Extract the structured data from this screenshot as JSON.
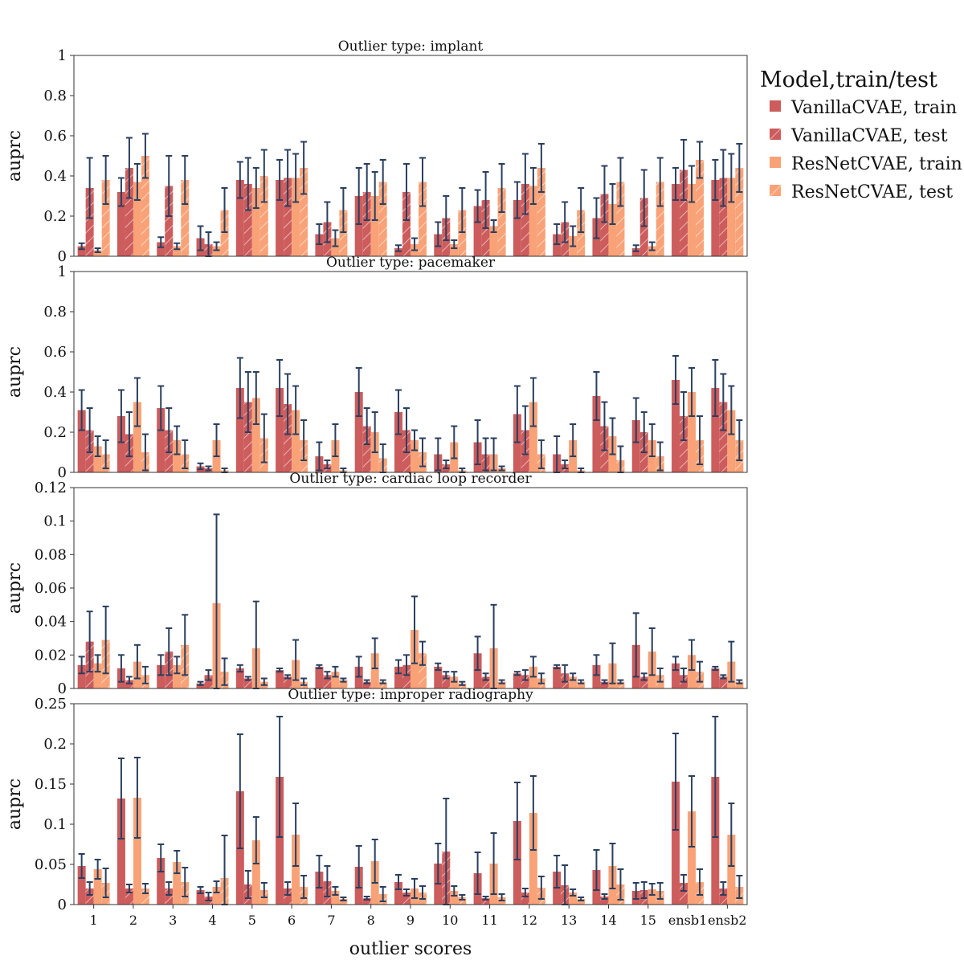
{
  "chart_data": {
    "type": "bar",
    "xlabel": "outlier scores",
    "categories": [
      "1",
      "2",
      "3",
      "4",
      "5",
      "6",
      "7",
      "8",
      "9",
      "10",
      "11",
      "12",
      "13",
      "14",
      "15",
      "ensb1",
      "ensb2"
    ],
    "legend": {
      "title": "Model,train/test",
      "placement": "right",
      "entries": [
        "VanillaCVAE, train",
        "VanillaCVAE, test",
        "ResNetCVAE, train",
        "ResNetCVAE, test"
      ]
    },
    "colors": {
      "vanilla": "#cd5c5c",
      "resnet": "#f9a277",
      "errorbar": "#2a3f5f",
      "hatch": "#ffffff"
    },
    "series_keys": [
      "VanillaCVAE, train",
      "VanillaCVAE, test",
      "ResNetCVAE, train",
      "ResNetCVAE, test"
    ],
    "panels": [
      {
        "title": "Outlier type: implant",
        "ylabel": "auprc",
        "ylim": [
          0,
          1
        ],
        "yticks": [
          0,
          0.2,
          0.4,
          0.6,
          0.8,
          1
        ],
        "ytick_labels": [
          "0",
          "0.2",
          "0.4",
          "0.6",
          "0.8",
          "1"
        ],
        "values": [
          [
            0.05,
            0.34,
            0.03,
            0.38
          ],
          [
            0.32,
            0.44,
            0.37,
            0.5
          ],
          [
            0.07,
            0.35,
            0.05,
            0.38
          ],
          [
            0.09,
            0.06,
            0.05,
            0.23
          ],
          [
            0.38,
            0.36,
            0.34,
            0.4
          ],
          [
            0.38,
            0.39,
            0.39,
            0.44
          ],
          [
            0.11,
            0.17,
            0.09,
            0.23
          ],
          [
            0.3,
            0.32,
            0.3,
            0.37
          ],
          [
            0.04,
            0.32,
            0.06,
            0.37
          ],
          [
            0.11,
            0.19,
            0.06,
            0.23
          ],
          [
            0.25,
            0.28,
            0.15,
            0.34
          ],
          [
            0.28,
            0.36,
            0.35,
            0.44
          ],
          [
            0.11,
            0.17,
            0.1,
            0.23
          ],
          [
            0.19,
            0.31,
            0.26,
            0.37
          ],
          [
            0.04,
            0.29,
            0.05,
            0.37
          ],
          [
            0.36,
            0.43,
            0.36,
            0.48
          ],
          [
            0.38,
            0.39,
            0.39,
            0.44
          ]
        ],
        "errors": [
          [
            0.015,
            0.15,
            0.01,
            0.12
          ],
          [
            0.07,
            0.15,
            0.09,
            0.11
          ],
          [
            0.025,
            0.15,
            0.015,
            0.12
          ],
          [
            0.06,
            0.06,
            0.02,
            0.11
          ],
          [
            0.09,
            0.13,
            0.1,
            0.13
          ],
          [
            0.1,
            0.14,
            0.12,
            0.13
          ],
          [
            0.05,
            0.1,
            0.04,
            0.11
          ],
          [
            0.14,
            0.14,
            0.12,
            0.11
          ],
          [
            0.015,
            0.14,
            0.03,
            0.12
          ],
          [
            0.06,
            0.11,
            0.02,
            0.11
          ],
          [
            0.08,
            0.14,
            0.03,
            0.12
          ],
          [
            0.09,
            0.15,
            0.09,
            0.12
          ],
          [
            0.05,
            0.1,
            0.05,
            0.11
          ],
          [
            0.1,
            0.14,
            0.1,
            0.12
          ],
          [
            0.015,
            0.14,
            0.02,
            0.12
          ],
          [
            0.08,
            0.15,
            0.09,
            0.09
          ],
          [
            0.1,
            0.14,
            0.12,
            0.12
          ]
        ]
      },
      {
        "title": "Outlier type: pacemaker",
        "ylabel": "auprc",
        "ylim": [
          0,
          1
        ],
        "yticks": [
          0,
          0.2,
          0.4,
          0.6,
          0.8,
          1
        ],
        "ytick_labels": [
          "0",
          "0.2",
          "0.4",
          "0.6",
          "0.8",
          "1"
        ],
        "values": [
          [
            0.31,
            0.21,
            0.13,
            0.09
          ],
          [
            0.28,
            0.19,
            0.35,
            0.1
          ],
          [
            0.32,
            0.21,
            0.16,
            0.09
          ],
          [
            0.03,
            0.02,
            0.16,
            0.01
          ],
          [
            0.42,
            0.35,
            0.37,
            0.17
          ],
          [
            0.42,
            0.34,
            0.31,
            0.16
          ],
          [
            0.08,
            0.04,
            0.16,
            0.01
          ],
          [
            0.4,
            0.23,
            0.2,
            0.07
          ],
          [
            0.3,
            0.21,
            0.16,
            0.1
          ],
          [
            0.09,
            0.04,
            0.15,
            0.01
          ],
          [
            0.15,
            0.09,
            0.09,
            0.02
          ],
          [
            0.29,
            0.21,
            0.35,
            0.09
          ],
          [
            0.09,
            0.04,
            0.16,
            0.01
          ],
          [
            0.38,
            0.23,
            0.18,
            0.06
          ],
          [
            0.26,
            0.2,
            0.16,
            0.08
          ],
          [
            0.46,
            0.28,
            0.4,
            0.16
          ],
          [
            0.42,
            0.35,
            0.31,
            0.16
          ]
        ],
        "errors": [
          [
            0.1,
            0.11,
            0.05,
            0.07
          ],
          [
            0.13,
            0.11,
            0.12,
            0.09
          ],
          [
            0.11,
            0.11,
            0.07,
            0.07
          ],
          [
            0.015,
            0.01,
            0.08,
            0.01
          ],
          [
            0.15,
            0.15,
            0.13,
            0.12
          ],
          [
            0.14,
            0.15,
            0.12,
            0.1
          ],
          [
            0.07,
            0.02,
            0.08,
            0.01
          ],
          [
            0.12,
            0.09,
            0.1,
            0.07
          ],
          [
            0.11,
            0.11,
            0.05,
            0.07
          ],
          [
            0.08,
            0.02,
            0.08,
            0.01
          ],
          [
            0.11,
            0.08,
            0.08,
            0.01
          ],
          [
            0.14,
            0.12,
            0.12,
            0.07
          ],
          [
            0.09,
            0.02,
            0.08,
            0.01
          ],
          [
            0.12,
            0.12,
            0.09,
            0.07
          ],
          [
            0.11,
            0.1,
            0.08,
            0.07
          ],
          [
            0.12,
            0.12,
            0.12,
            0.12
          ],
          [
            0.14,
            0.14,
            0.12,
            0.1
          ]
        ]
      },
      {
        "title": "Outlier type: cardiac loop recorder",
        "ylabel": "auprc",
        "ylim": [
          0,
          0.12
        ],
        "yticks": [
          0,
          0.02,
          0.04,
          0.06,
          0.08,
          0.1,
          0.12
        ],
        "ytick_labels": [
          "0",
          "0.02",
          "0.04",
          "0.06",
          "0.08",
          "0.1",
          "0.12"
        ],
        "values": [
          [
            0.014,
            0.028,
            0.015,
            0.029
          ],
          [
            0.012,
            0.005,
            0.016,
            0.008
          ],
          [
            0.014,
            0.022,
            0.014,
            0.026
          ],
          [
            0.003,
            0.008,
            0.051,
            0.01
          ],
          [
            0.012,
            0.006,
            0.024,
            0.004
          ],
          [
            0.011,
            0.007,
            0.017,
            0.004
          ],
          [
            0.013,
            0.008,
            0.01,
            0.005
          ],
          [
            0.013,
            0.004,
            0.021,
            0.004
          ],
          [
            0.013,
            0.014,
            0.035,
            0.021
          ],
          [
            0.013,
            0.008,
            0.007,
            0.003
          ],
          [
            0.021,
            0.007,
            0.024,
            0.004
          ],
          [
            0.009,
            0.008,
            0.013,
            0.006
          ],
          [
            0.013,
            0.009,
            0.007,
            0.004
          ],
          [
            0.014,
            0.004,
            0.015,
            0.004
          ],
          [
            0.026,
            0.007,
            0.022,
            0.008
          ],
          [
            0.015,
            0.008,
            0.02,
            0.01
          ],
          [
            0.012,
            0.007,
            0.016,
            0.004
          ]
        ],
        "errors": [
          [
            0.005,
            0.018,
            0.005,
            0.02
          ],
          [
            0.008,
            0.002,
            0.01,
            0.005
          ],
          [
            0.006,
            0.014,
            0.005,
            0.018
          ],
          [
            0.001,
            0.003,
            0.053,
            0.008
          ],
          [
            0.002,
            0.001,
            0.028,
            0.002
          ],
          [
            0.001,
            0.001,
            0.012,
            0.002
          ],
          [
            0.001,
            0.002,
            0.003,
            0.001
          ],
          [
            0.006,
            0.001,
            0.009,
            0.001
          ],
          [
            0.004,
            0.006,
            0.02,
            0.007
          ],
          [
            0.002,
            0.002,
            0.003,
            0.001
          ],
          [
            0.01,
            0.002,
            0.026,
            0.001
          ],
          [
            0.001,
            0.003,
            0.006,
            0.003
          ],
          [
            0.001,
            0.005,
            0.002,
            0.001
          ],
          [
            0.006,
            0.001,
            0.012,
            0.001
          ],
          [
            0.019,
            0.002,
            0.014,
            0.004
          ],
          [
            0.004,
            0.004,
            0.009,
            0.006
          ],
          [
            0.001,
            0.001,
            0.012,
            0.001
          ]
        ]
      },
      {
        "title": "Outlier type: improper radiography",
        "ylabel": "auprc",
        "ylim": [
          0,
          0.25
        ],
        "yticks": [
          0,
          0.05,
          0.1,
          0.15,
          0.2,
          0.25
        ],
        "ytick_labels": [
          "0",
          "0.05",
          "0.1",
          "0.15",
          "0.2",
          "0.25"
        ],
        "values": [
          [
            0.048,
            0.02,
            0.044,
            0.027
          ],
          [
            0.132,
            0.02,
            0.133,
            0.02
          ],
          [
            0.058,
            0.02,
            0.053,
            0.028
          ],
          [
            0.018,
            0.01,
            0.022,
            0.033
          ],
          [
            0.141,
            0.025,
            0.08,
            0.018
          ],
          [
            0.159,
            0.02,
            0.087,
            0.022
          ],
          [
            0.041,
            0.029,
            0.017,
            0.007
          ],
          [
            0.047,
            0.008,
            0.054,
            0.013
          ],
          [
            0.028,
            0.015,
            0.02,
            0.015
          ],
          [
            0.051,
            0.066,
            0.017,
            0.009
          ],
          [
            0.039,
            0.008,
            0.051,
            0.009
          ],
          [
            0.104,
            0.015,
            0.114,
            0.021
          ],
          [
            0.041,
            0.024,
            0.015,
            0.007
          ],
          [
            0.043,
            0.01,
            0.048,
            0.025
          ],
          [
            0.017,
            0.018,
            0.019,
            0.017
          ],
          [
            0.153,
            0.027,
            0.116,
            0.028
          ],
          [
            0.159,
            0.02,
            0.087,
            0.022
          ]
        ],
        "errors": [
          [
            0.015,
            0.008,
            0.012,
            0.018
          ],
          [
            0.05,
            0.005,
            0.05,
            0.006
          ],
          [
            0.017,
            0.008,
            0.014,
            0.018
          ],
          [
            0.004,
            0.005,
            0.007,
            0.053
          ],
          [
            0.071,
            0.017,
            0.029,
            0.009
          ],
          [
            0.075,
            0.008,
            0.039,
            0.014
          ],
          [
            0.02,
            0.019,
            0.005,
            0.002
          ],
          [
            0.026,
            0.002,
            0.027,
            0.009
          ],
          [
            0.009,
            0.004,
            0.012,
            0.008
          ],
          [
            0.025,
            0.066,
            0.006,
            0.003
          ],
          [
            0.026,
            0.002,
            0.038,
            0.004
          ],
          [
            0.048,
            0.005,
            0.046,
            0.014
          ],
          [
            0.02,
            0.025,
            0.004,
            0.002
          ],
          [
            0.025,
            0.003,
            0.028,
            0.019
          ],
          [
            0.01,
            0.01,
            0.007,
            0.01
          ],
          [
            0.06,
            0.01,
            0.044,
            0.016
          ],
          [
            0.075,
            0.008,
            0.039,
            0.014
          ]
        ]
      }
    ]
  }
}
